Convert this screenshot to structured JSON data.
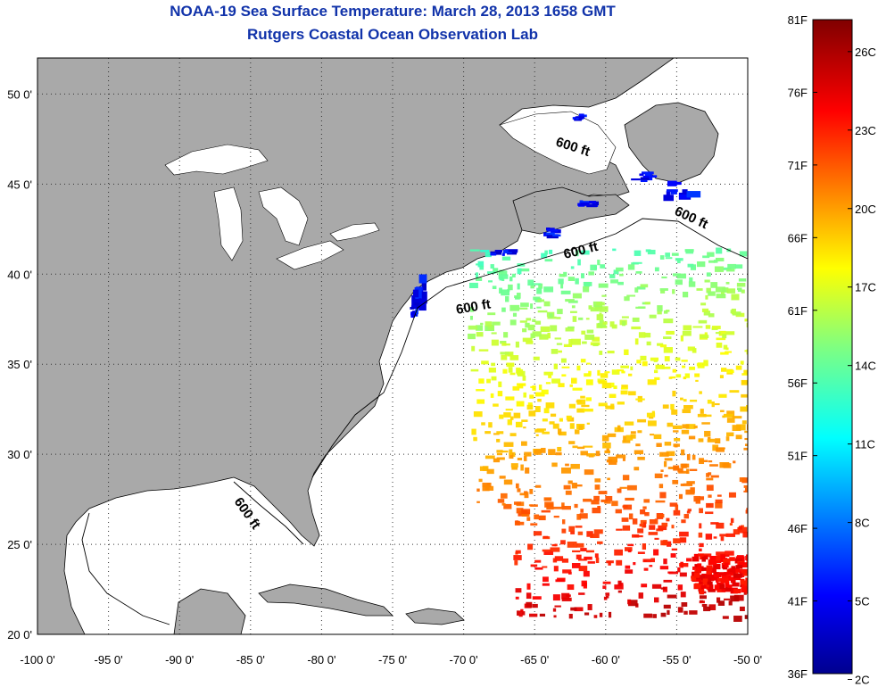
{
  "title": "NOAA-19 Sea Surface Temperature:  March 28, 2013 1658 GMT",
  "subtitle": "Rutgers Coastal Ocean Observation Lab",
  "map": {
    "lon_ticks": [
      "-100 0'",
      "-95 0'",
      "-90 0'",
      "-85 0'",
      "-80 0'",
      "-75 0'",
      "-70 0'",
      "-65 0'",
      "-60 0'",
      "-55 0'",
      "-50 0'"
    ],
    "lat_ticks": [
      "20 0'",
      "25 0'",
      "30 0'",
      "35 0'",
      "40 0'",
      "45 0'",
      "50 0'"
    ],
    "lon_range": [
      -100,
      -50
    ],
    "lat_range": [
      20,
      52
    ],
    "contour_labels": [
      "600 ft",
      "600 ft",
      "600 ft",
      "600 ft",
      "600 ft"
    ],
    "land_color": "#a9a9a9",
    "water_color": "#ffffff",
    "grid_style": "dotted"
  },
  "colorbar": {
    "f_labels": [
      "81F",
      "76F",
      "71F",
      "66F",
      "61F",
      "56F",
      "51F",
      "46F",
      "41F",
      "36F"
    ],
    "c_labels": [
      "26C",
      "23C",
      "20C",
      "17C",
      "14C",
      "11C",
      "8C",
      "5C",
      "2C"
    ],
    "scale": "jet"
  }
}
